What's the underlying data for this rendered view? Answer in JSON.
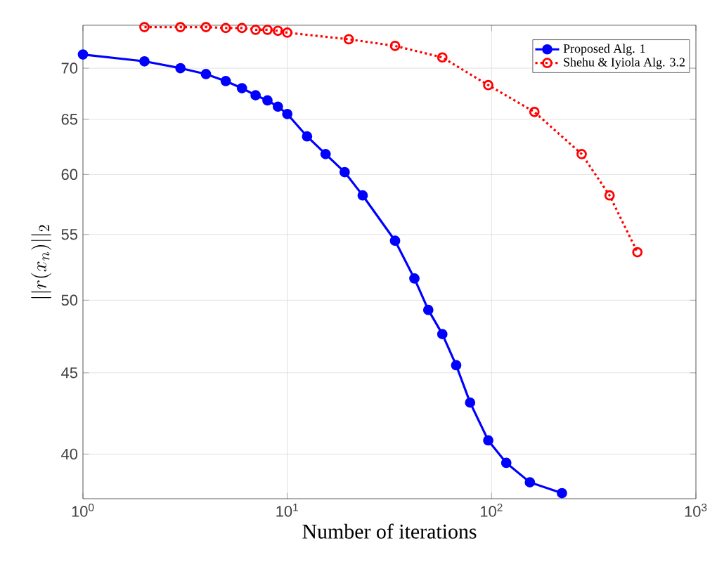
{
  "chart_data": {
    "type": "line",
    "xlabel": "Number of iterations",
    "ylabel": "||r(x_n)||_2",
    "log": "xy",
    "grid": true,
    "legend": "top right",
    "marker": "circle",
    "xlim": [
      1,
      1000
    ],
    "ylim": [
      37.5,
      74.5
    ],
    "xticks": [
      {
        "value": 1,
        "label": "10$^{0}$"
      },
      {
        "value": 10,
        "label": "10$^{1}$"
      },
      {
        "value": 100,
        "label": "10$^{2}$"
      },
      {
        "value": 1000,
        "label": "10$^{3}$"
      }
    ],
    "yticks": [
      40,
      45,
      50,
      55,
      60,
      65,
      70
    ],
    "series": [
      {
        "name": "Proposed Alg. 1",
        "color": "#0000ff",
        "line_style": "solid",
        "x": [
          1,
          2,
          3,
          4,
          5,
          6,
          7,
          8,
          9,
          10,
          12.5,
          15.4,
          19.1,
          23.4,
          33.7,
          41.9,
          49,
          57.4,
          67.1,
          78.5,
          96.3,
          118,
          154,
          221
        ],
        "values": [
          71.4,
          70.7,
          70,
          69.4,
          68.7,
          68,
          67.3,
          66.8,
          66.2,
          65.5,
          63.4,
          61.8,
          60.2,
          58.2,
          54.5,
          51.6,
          49.3,
          47.6,
          45.5,
          43.1,
          40.8,
          39.5,
          38.4,
          37.8
        ]
      },
      {
        "name": "Shehu & Iyiola Alg. 3.2",
        "color": "#ff0000",
        "line_style": "dotted",
        "x": [
          2,
          3,
          4,
          5,
          6,
          7,
          8,
          9,
          10,
          20,
          33.7,
          57.4,
          96.3,
          162,
          276,
          378,
          517
        ],
        "values": [
          74.3,
          74.3,
          74.3,
          74.2,
          74.2,
          74,
          74,
          73.9,
          73.7,
          73,
          72.3,
          71.1,
          68.3,
          65.7,
          61.8,
          58.2,
          53.6
        ]
      }
    ]
  }
}
